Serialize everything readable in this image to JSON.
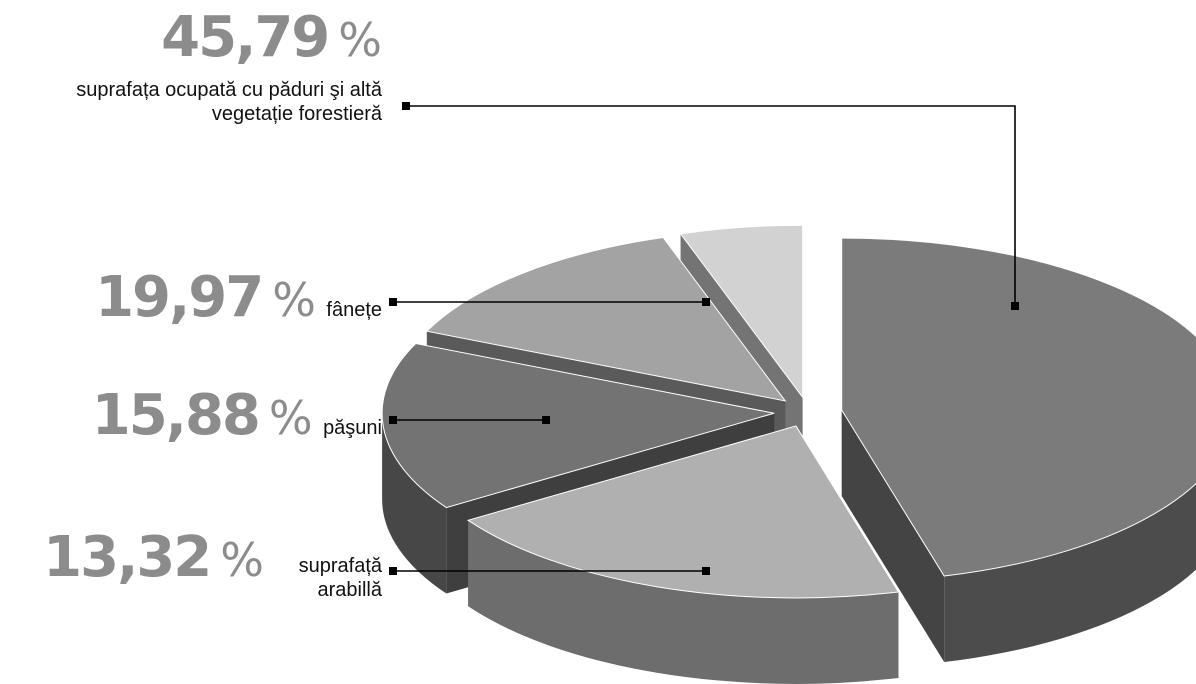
{
  "chart_data": {
    "type": "pie",
    "title": "",
    "slices": [
      {
        "value": 45.79,
        "value_label": "45,79",
        "unit": "%",
        "label": "suprafața ocupată cu păduri şi altă vegetație forestieră",
        "color": "#7b7b7b"
      },
      {
        "value": 19.97,
        "value_label": "19,97",
        "unit": "%",
        "label": "fânețe",
        "color": "#b0b0b0"
      },
      {
        "value": 15.88,
        "value_label": "15,88",
        "unit": "%",
        "label": "păşuni",
        "color": "#737373"
      },
      {
        "value": 13.32,
        "value_label": "13,32",
        "unit": "%",
        "label": "suprafață arabillă",
        "color": "#a3a3a3"
      },
      {
        "value": 5.04,
        "value_label": "",
        "unit": "",
        "label": "",
        "color": "#d2d2d2"
      }
    ],
    "style": "3d-exploded"
  }
}
